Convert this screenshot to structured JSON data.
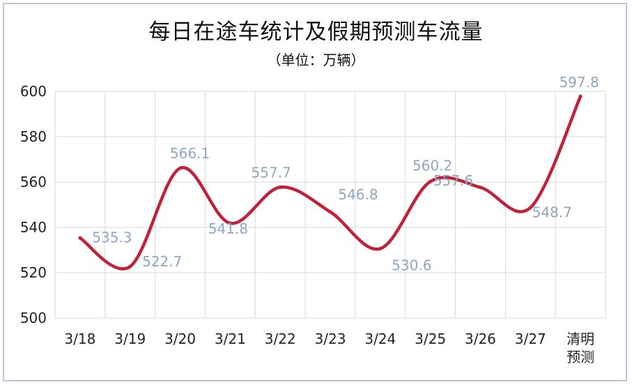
{
  "chart_data": {
    "type": "line",
    "title": "每日在途车统计及假期预测车流量",
    "subtitle": "（单位：万辆）",
    "categories": [
      "3/18",
      "3/19",
      "3/20",
      "3/21",
      "3/22",
      "3/23",
      "3/24",
      "3/25",
      "3/26",
      "3/27",
      "清明\n预测"
    ],
    "series": [
      {
        "values": [
          535.3,
          522.7,
          566.1,
          541.8,
          557.7,
          546.8,
          530.6,
          560.2,
          557.6,
          548.7,
          597.8
        ]
      }
    ],
    "ylim": [
      500,
      600
    ],
    "yticks": [
      500,
      520,
      540,
      560,
      580,
      600
    ],
    "grid": true,
    "legend": "none",
    "colors": {
      "line": "#c0223b",
      "data_label": "#8ea6c4",
      "grid": "#d9d9d9",
      "frame": "#b9c6de"
    }
  }
}
